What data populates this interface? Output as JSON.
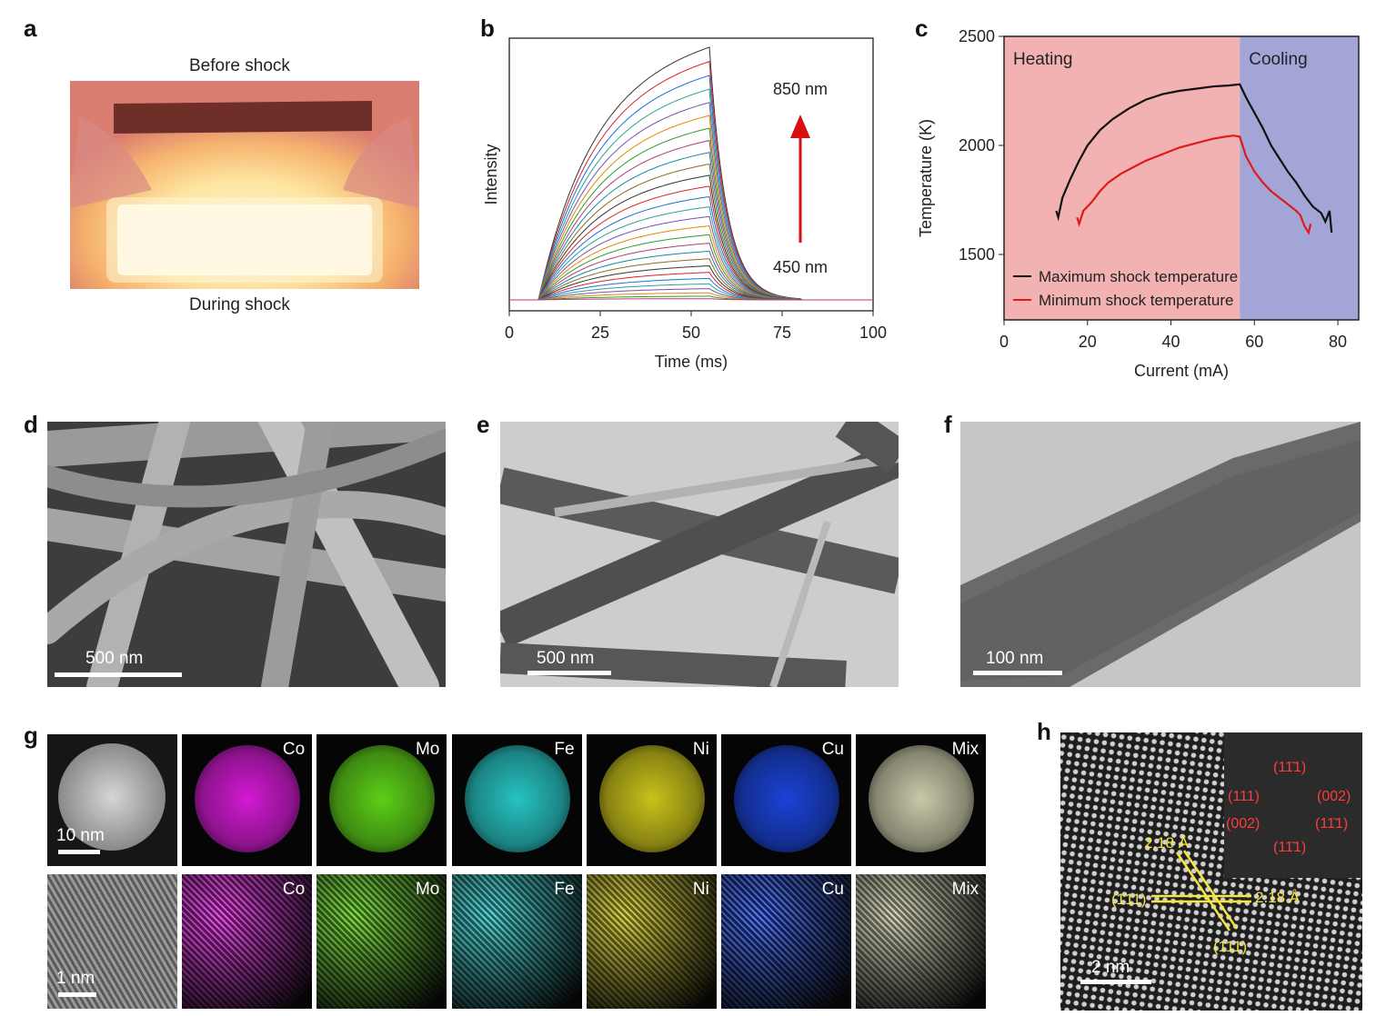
{
  "panels": {
    "a": {
      "letter": "a",
      "top_caption": "Before shock",
      "bottom_caption": "During shock"
    },
    "b": {
      "letter": "b"
    },
    "c": {
      "letter": "c"
    },
    "d": {
      "letter": "d",
      "scale": "500 nm"
    },
    "e": {
      "letter": "e",
      "scale": "500 nm"
    },
    "f": {
      "letter": "f",
      "scale": "100 nm"
    },
    "g": {
      "letter": "g",
      "row1_scale": "10 nm",
      "row2_scale": "1 nm",
      "elements": [
        {
          "label": "Co",
          "color": "#d21ad2"
        },
        {
          "label": "Mo",
          "color": "#5ccf18"
        },
        {
          "label": "Fe",
          "color": "#27c3c3"
        },
        {
          "label": "Ni",
          "color": "#c9c21a"
        },
        {
          "label": "Cu",
          "color": "#1a43d6"
        },
        {
          "label": "Mix",
          "color": "#c8c8a8"
        }
      ]
    },
    "h": {
      "letter": "h",
      "scale": "2 nm",
      "spacing_a": "2.18 Å",
      "spacing_b": "2.18 Å",
      "plane_left": "(1̄11)",
      "plane_bottom": "(111)",
      "fft": {
        "top": "(11̄1)",
        "left": "(111)",
        "right": "(002)",
        "left2": "(002)",
        "right2": "(11̄1)",
        "bottom": "(11̄1)"
      }
    }
  },
  "chart_data": [
    {
      "type": "line",
      "panel": "b",
      "xlabel": "Time (ms)",
      "ylabel": "Intensity",
      "xlim": [
        0,
        100
      ],
      "xticks": [
        "0",
        "25",
        "50",
        "75",
        "100"
      ],
      "annotation_top": "850 nm",
      "annotation_bottom": "450 nm",
      "series_count": 28,
      "peak_time": 55,
      "onset_time": 8,
      "end_time": 80,
      "colors": [
        "#333333",
        "#d22",
        "#1b6fd6",
        "#2aa198",
        "#7a4fb0",
        "#e08a00",
        "#2c9c2c",
        "#b03a7a",
        "#0f8aa0",
        "#8b6b1f"
      ]
    },
    {
      "type": "line",
      "panel": "c",
      "xlabel": "Current (mA)",
      "ylabel": "Temperature (K)",
      "xlim": [
        0,
        85
      ],
      "ylim": [
        1200,
        2500
      ],
      "xticks": [
        "0",
        "20",
        "40",
        "60",
        "80"
      ],
      "yticks": [
        "1500",
        "2000",
        "2500"
      ],
      "regions": [
        {
          "label": "Heating",
          "from": 0,
          "to": 56.5,
          "color": "#f2b2b2"
        },
        {
          "label": "Cooling",
          "from": 56.5,
          "to": 85,
          "color": "#a3a5d6"
        }
      ],
      "legend_position": "bottom-left",
      "series": [
        {
          "name": "Maximum shock temperature",
          "color": "#111111",
          "x": [
            12.5,
            13,
            14,
            16,
            18,
            20,
            23,
            26,
            30,
            34,
            38,
            42,
            46,
            50,
            54,
            56.5,
            58,
            60,
            62,
            64,
            66,
            68,
            70,
            72,
            74,
            76,
            77,
            78,
            78.5
          ],
          "y": [
            1700,
            1670,
            1760,
            1850,
            1930,
            2000,
            2070,
            2120,
            2170,
            2210,
            2235,
            2250,
            2260,
            2270,
            2275,
            2280,
            2220,
            2150,
            2080,
            2000,
            1940,
            1880,
            1830,
            1770,
            1720,
            1690,
            1650,
            1700,
            1600
          ]
        },
        {
          "name": "Minimum shock temperature",
          "color": "#e01a1a",
          "x": [
            17.5,
            18,
            19,
            21,
            23,
            25,
            28,
            31,
            34,
            38,
            42,
            46,
            50,
            53,
            55,
            56.5,
            58,
            60,
            62,
            64,
            66,
            68,
            70,
            71,
            72,
            73,
            73.5
          ],
          "y": [
            1670,
            1640,
            1700,
            1740,
            1790,
            1830,
            1870,
            1900,
            1930,
            1960,
            1990,
            2010,
            2030,
            2040,
            2045,
            2040,
            1950,
            1880,
            1830,
            1790,
            1760,
            1730,
            1700,
            1680,
            1630,
            1600,
            1640
          ]
        }
      ]
    }
  ]
}
